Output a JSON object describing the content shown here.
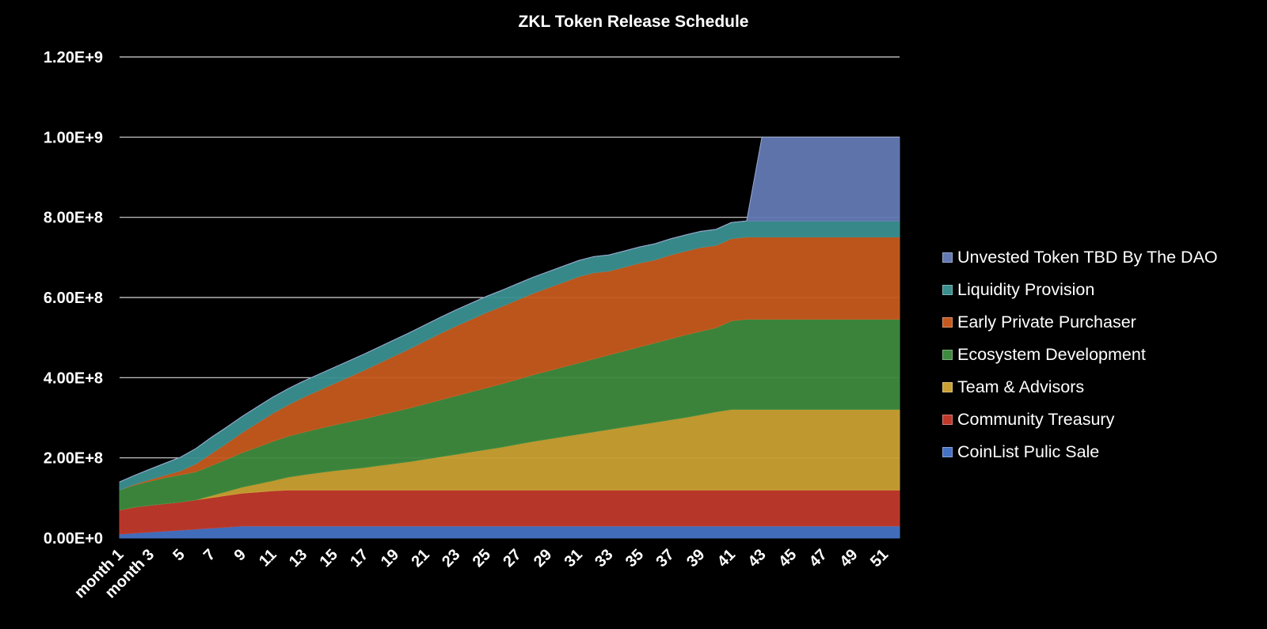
{
  "chart_data": {
    "type": "area",
    "stacked": true,
    "title": "ZKL Token Release Schedule",
    "ylim": [
      0,
      1200000000
    ],
    "ytick_values": [
      0,
      200000000,
      400000000,
      600000000,
      800000000,
      1000000000,
      1200000000
    ],
    "ytick_labels": [
      "0.00E+0",
      "2.00E+8",
      "4.00E+8",
      "6.00E+8",
      "8.00E+8",
      "1.00E+9",
      "1.20E+9"
    ],
    "x": [
      1,
      2,
      3,
      4,
      5,
      6,
      7,
      8,
      9,
      10,
      11,
      12,
      13,
      14,
      15,
      16,
      17,
      18,
      19,
      20,
      21,
      22,
      23,
      24,
      25,
      26,
      27,
      28,
      29,
      30,
      31,
      32,
      33,
      34,
      35,
      36,
      37,
      38,
      39,
      40,
      41,
      42,
      43,
      44,
      45,
      46,
      47,
      48,
      49,
      50,
      51,
      52
    ],
    "xtick_labels": [
      "month 1",
      "month 3",
      "5",
      "7",
      "9",
      "11",
      "13",
      "15",
      "17",
      "19",
      "21",
      "23",
      "25",
      "27",
      "29",
      "31",
      "33",
      "35",
      "37",
      "39",
      "41",
      "43",
      "45",
      "47",
      "49",
      "51"
    ],
    "grid": "horizontal",
    "legend_position": "right",
    "series": [
      {
        "name": "CoinList Pulic Sale",
        "color": "#4472c4",
        "values": [
          10000000,
          12500000,
          15000000,
          17500000,
          20000000,
          22500000,
          25000000,
          27500000,
          30000000,
          30000000,
          30000000,
          30000000,
          30000000,
          30000000,
          30000000,
          30000000,
          30000000,
          30000000,
          30000000,
          30000000,
          30000000,
          30000000,
          30000000,
          30000000,
          30000000,
          30000000,
          30000000,
          30000000,
          30000000,
          30000000,
          30000000,
          30000000,
          30000000,
          30000000,
          30000000,
          30000000,
          30000000,
          30000000,
          30000000,
          30000000,
          30000000,
          30000000,
          30000000,
          30000000,
          30000000,
          30000000,
          30000000,
          30000000,
          30000000,
          30000000,
          30000000,
          30000000
        ]
      },
      {
        "name": "Community Treasury",
        "color": "#c0392b",
        "values": [
          60000000,
          65000000,
          67000000,
          68500000,
          70000000,
          73000000,
          76000000,
          79000000,
          82000000,
          85000000,
          88000000,
          90000000,
          90000000,
          90000000,
          90000000,
          90000000,
          90000000,
          90000000,
          90000000,
          90000000,
          90000000,
          90000000,
          90000000,
          90000000,
          90000000,
          90000000,
          90000000,
          90000000,
          90000000,
          90000000,
          90000000,
          90000000,
          90000000,
          90000000,
          90000000,
          90000000,
          90000000,
          90000000,
          90000000,
          90000000,
          90000000,
          90000000,
          90000000,
          90000000,
          90000000,
          90000000,
          90000000,
          90000000,
          90000000,
          90000000,
          90000000,
          90000000
        ]
      },
      {
        "name": "Team & Advisors",
        "color": "#c9a032",
        "values": [
          0,
          0,
          0,
          0,
          0,
          0,
          5000000,
          10000000,
          15000000,
          20000000,
          25000000,
          32000000,
          38000000,
          43000000,
          48000000,
          52000000,
          56000000,
          61000000,
          66000000,
          71000000,
          77000000,
          83000000,
          89000000,
          95000000,
          101000000,
          107000000,
          114000000,
          121000000,
          127000000,
          133000000,
          139000000,
          145000000,
          151000000,
          157000000,
          163000000,
          169000000,
          175000000,
          181000000,
          188000000,
          195000000,
          201000000,
          201000000,
          201000000,
          201000000,
          201000000,
          201000000,
          201000000,
          201000000,
          201000000,
          201000000,
          201000000,
          201000000
        ]
      },
      {
        "name": "Ecosystem Development",
        "color": "#3e8a3e",
        "values": [
          50000000,
          55000000,
          60000000,
          65000000,
          68000000,
          70000000,
          75000000,
          80000000,
          86000000,
          92000000,
          98000000,
          102000000,
          106000000,
          110000000,
          114000000,
          118000000,
          122000000,
          126000000,
          130000000,
          134000000,
          138000000,
          142000000,
          146000000,
          150000000,
          154000000,
          158000000,
          162000000,
          166000000,
          170000000,
          174000000,
          178000000,
          182000000,
          186000000,
          190000000,
          194000000,
          198000000,
          202000000,
          206000000,
          208000000,
          210000000,
          221000000,
          225000000,
          225000000,
          225000000,
          225000000,
          225000000,
          225000000,
          225000000,
          225000000,
          225000000,
          225000000,
          225000000
        ]
      },
      {
        "name": "Early Private Purchaser",
        "color": "#c55a1e",
        "values": [
          0,
          2000000,
          4000000,
          6000000,
          10000000,
          20000000,
          30000000,
          40000000,
          50000000,
          60000000,
          70000000,
          78000000,
          87000000,
          95000000,
          103000000,
          112000000,
          121000000,
          130000000,
          139000000,
          148000000,
          157000000,
          166000000,
          174000000,
          181000000,
          188000000,
          193000000,
          198000000,
          203000000,
          207000000,
          211000000,
          215000000,
          215000000,
          209000000,
          209000000,
          209000000,
          207000000,
          209000000,
          209000000,
          209000000,
          205000000,
          205000000,
          205000000,
          205000000,
          205000000,
          205000000,
          205000000,
          205000000,
          205000000,
          205000000,
          205000000,
          205000000,
          205000000
        ]
      },
      {
        "name": "Liquidity Provision",
        "color": "#3a8f8f",
        "values": [
          20000000,
          22000000,
          26000000,
          30000000,
          34000000,
          38000000,
          40000000,
          40000000,
          40000000,
          40000000,
          40000000,
          40000000,
          40000000,
          40000000,
          40000000,
          40000000,
          40000000,
          40000000,
          40000000,
          40000000,
          40000000,
          40000000,
          40000000,
          40000000,
          40000000,
          40000000,
          40000000,
          40000000,
          40000000,
          40000000,
          40000000,
          40000000,
          40000000,
          40000000,
          40000000,
          40000000,
          40000000,
          40000000,
          40000000,
          40000000,
          40000000,
          40000000,
          40000000,
          40000000,
          40000000,
          40000000,
          40000000,
          40000000,
          40000000,
          40000000,
          40000000,
          40000000
        ]
      },
      {
        "name": "Unvested Token TBD By The DAO",
        "color": "#6279b3",
        "values": [
          0,
          0,
          0,
          0,
          0,
          0,
          0,
          0,
          0,
          0,
          0,
          0,
          0,
          0,
          0,
          0,
          0,
          0,
          0,
          0,
          0,
          0,
          0,
          0,
          0,
          0,
          0,
          0,
          0,
          0,
          0,
          0,
          0,
          0,
          0,
          0,
          0,
          0,
          0,
          0,
          0,
          0,
          209000000,
          209000000,
          209000000,
          209000000,
          209000000,
          209000000,
          209000000,
          209000000,
          209000000,
          209000000
        ]
      }
    ]
  }
}
